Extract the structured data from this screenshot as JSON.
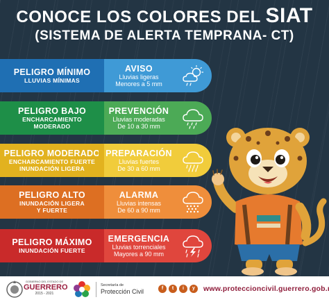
{
  "title": {
    "line1_prefix": "CONOCE LOS COLORES DEL ",
    "line1_highlight": "SIAT",
    "line2": "(SISTEMA DE ALERTA TEMPRANA- CT)"
  },
  "levels": [
    {
      "name": "PELIGRO MÍNIMO",
      "desc1": "LLUVIAS MÍNIMAS",
      "desc2": "",
      "alert": "AVISO",
      "rain1": "Lluvias ligeras",
      "rain2": "Menores a 5 mm",
      "icon": "sun-cloud-icon",
      "color": "#1f6fb3"
    },
    {
      "name": "PELIGRO BAJO",
      "desc1": "ENCHARCAMIENTO",
      "desc2": "MODERADO",
      "alert": "PREVENCIÓN",
      "rain1": "Lluvias moderadas",
      "rain2": "De 10 a 30 mm",
      "icon": "cloud-rain-icon",
      "color": "#1e8f48"
    },
    {
      "name": "PELIGRO MODERADO",
      "desc1": "ENCHARCAMIENTO FUERTE",
      "desc2": "INUNDACIÓN LIGERA",
      "alert": "PREPARACIÓN",
      "rain1": "Lluvias fuertes",
      "rain2": "De 30 a 60 mm",
      "icon": "cloud-rain-icon",
      "color": "#e2b21f"
    },
    {
      "name": "PELIGRO ALTO",
      "desc1": "INUNDACIÓN LIGERA",
      "desc2": "Y FUERTE",
      "alert": "ALARMA",
      "rain1": "Lluvias intensas",
      "rain2": "De 60 a 90 mm",
      "icon": "cloud-heavy-rain-icon",
      "color": "#dd6f22"
    },
    {
      "name": "PELIGRO MÁXIMO",
      "desc1": "INUNDACIÓN FUERTE",
      "desc2": "",
      "alert": "EMERGENCIA",
      "rain1": "Lluvias torrenciales",
      "rain2": "Mayores a 90 mm",
      "icon": "cloud-storm-icon",
      "color": "#c92a2a"
    }
  ],
  "footer": {
    "gob_small": "GOBIERNO DEL ESTADO DE",
    "gob_name": "GUERRERO",
    "gob_years": "2015 - 2021",
    "sec_small": "Secretaría de",
    "sec_name": "Protección Civil",
    "social": [
      "f",
      "t",
      "i",
      "y"
    ],
    "url": "www.proteccioncivil.guerrero.gob.mx"
  }
}
